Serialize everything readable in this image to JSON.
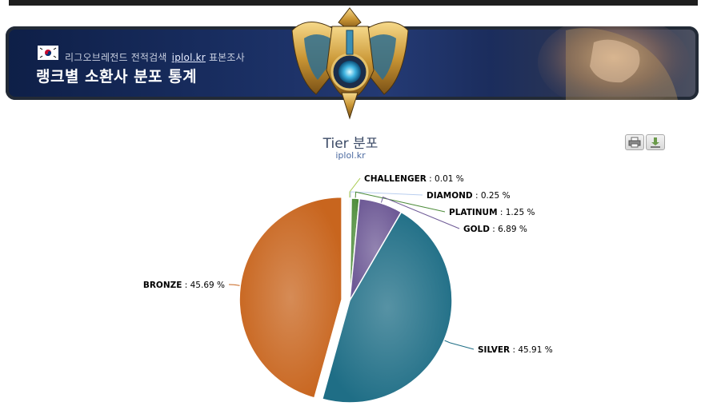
{
  "banner": {
    "site_name": "리그오브레전드 전적검색",
    "brand": "iplol.kr",
    "brand_suffix": "표본조사",
    "title": "랭크별 소환사 분포 통계"
  },
  "toolbar": {
    "print_icon": "printer-icon",
    "export_icon": "download-icon"
  },
  "colors": {
    "challenger": "#a7c94a",
    "diamond": "#b9ceef",
    "platinum": "#4d8c3a",
    "gold": "#6e5a96",
    "silver": "#1f6e86",
    "bronze": "#c8651e"
  },
  "chart_data": {
    "type": "pie",
    "title": "Tier 분포",
    "subtitle": "iplol.kr",
    "slices": [
      {
        "name": "CHALLENGER",
        "value": 0.01,
        "label": "0.01 %"
      },
      {
        "name": "DIAMOND",
        "value": 0.25,
        "label": "0.25 %"
      },
      {
        "name": "PLATINUM",
        "value": 1.25,
        "label": "1.25 %"
      },
      {
        "name": "GOLD",
        "value": 6.89,
        "label": "6.89 %"
      },
      {
        "name": "SILVER",
        "value": 45.91,
        "label": "45.91 %"
      },
      {
        "name": "BRONZE",
        "value": 45.69,
        "label": "45.69 %"
      }
    ],
    "exploded": "BRONZE"
  }
}
